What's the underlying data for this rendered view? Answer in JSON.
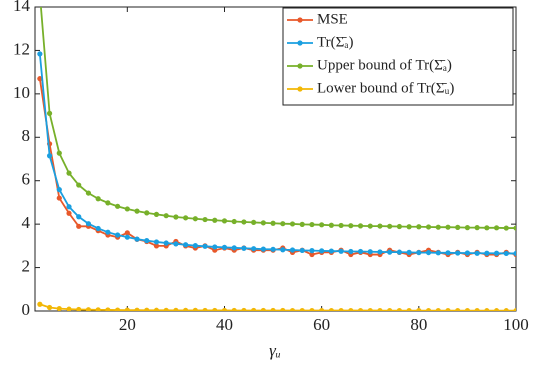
{
  "chart_data": {
    "type": "line",
    "x_label": "γᵤ",
    "x": [
      2,
      4,
      6,
      8,
      10,
      12,
      14,
      16,
      18,
      20,
      22,
      24,
      26,
      28,
      30,
      32,
      34,
      36,
      38,
      40,
      42,
      44,
      46,
      48,
      50,
      52,
      54,
      56,
      58,
      60,
      62,
      64,
      66,
      68,
      70,
      72,
      74,
      76,
      78,
      80,
      82,
      84,
      86,
      88,
      90,
      92,
      94,
      96,
      98,
      100
    ],
    "series": [
      {
        "name": "MSE",
        "color": "#e8582a",
        "values": [
          10.7,
          7.7,
          5.2,
          4.5,
          3.9,
          3.9,
          3.7,
          3.5,
          3.4,
          3.6,
          3.3,
          3.2,
          3.0,
          3.0,
          3.2,
          3.0,
          2.9,
          3.0,
          2.8,
          2.9,
          2.8,
          2.9,
          2.8,
          2.8,
          2.8,
          2.9,
          2.7,
          2.8,
          2.6,
          2.7,
          2.7,
          2.8,
          2.6,
          2.7,
          2.6,
          2.6,
          2.8,
          2.7,
          2.6,
          2.7,
          2.8,
          2.7,
          2.6,
          2.7,
          2.6,
          2.7,
          2.6,
          2.6,
          2.7,
          2.6
        ]
      },
      {
        "name": "Tr(Σ̄ₐ)",
        "color": "#1a9fe0",
        "values": [
          11.84,
          7.15,
          5.59,
          4.8,
          4.34,
          4.02,
          3.8,
          3.63,
          3.5,
          3.4,
          3.31,
          3.24,
          3.18,
          3.13,
          3.09,
          3.05,
          3.01,
          2.98,
          2.95,
          2.93,
          2.91,
          2.89,
          2.87,
          2.85,
          2.84,
          2.82,
          2.81,
          2.79,
          2.78,
          2.77,
          2.76,
          2.75,
          2.74,
          2.74,
          2.73,
          2.72,
          2.71,
          2.71,
          2.7,
          2.69,
          2.69,
          2.68,
          2.68,
          2.67,
          2.67,
          2.66,
          2.66,
          2.66,
          2.65,
          2.65
        ]
      },
      {
        "name": "Upper bound of Tr(Σ̄ₐ)",
        "color": "#77b02a",
        "values": [
          14.6,
          9.1,
          7.27,
          6.35,
          5.8,
          5.43,
          5.17,
          4.98,
          4.82,
          4.7,
          4.6,
          4.52,
          4.45,
          4.39,
          4.33,
          4.29,
          4.25,
          4.21,
          4.18,
          4.15,
          4.12,
          4.1,
          4.08,
          4.06,
          4.04,
          4.02,
          4.01,
          3.99,
          3.98,
          3.97,
          3.95,
          3.94,
          3.93,
          3.92,
          3.91,
          3.91,
          3.9,
          3.89,
          3.88,
          3.88,
          3.87,
          3.86,
          3.86,
          3.85,
          3.84,
          3.84,
          3.83,
          3.83,
          3.82,
          3.82
        ]
      },
      {
        "name": "Lower bound of Tr(Σ̄ᵤ)",
        "color": "#f2b705",
        "values": [
          0.31,
          0.16,
          0.11,
          0.085,
          0.07,
          0.06,
          0.053,
          0.048,
          0.043,
          0.04,
          0.037,
          0.035,
          0.033,
          0.031,
          0.03,
          0.029,
          0.028,
          0.027,
          0.026,
          0.025,
          0.024,
          0.024,
          0.023,
          0.023,
          0.022,
          0.022,
          0.021,
          0.021,
          0.021,
          0.02,
          0.02,
          0.02,
          0.019,
          0.019,
          0.019,
          0.019,
          0.018,
          0.018,
          0.018,
          0.018,
          0.018,
          0.017,
          0.017,
          0.017,
          0.017,
          0.017,
          0.016,
          0.016,
          0.016,
          0.016
        ]
      }
    ],
    "xlim": [
      1,
      100
    ],
    "ylim": [
      0,
      14
    ],
    "xticks": [
      20,
      40,
      60,
      80,
      100
    ],
    "yticks": [
      0,
      2,
      4,
      6,
      8,
      10,
      12,
      14
    ],
    "legend": "upper right"
  }
}
